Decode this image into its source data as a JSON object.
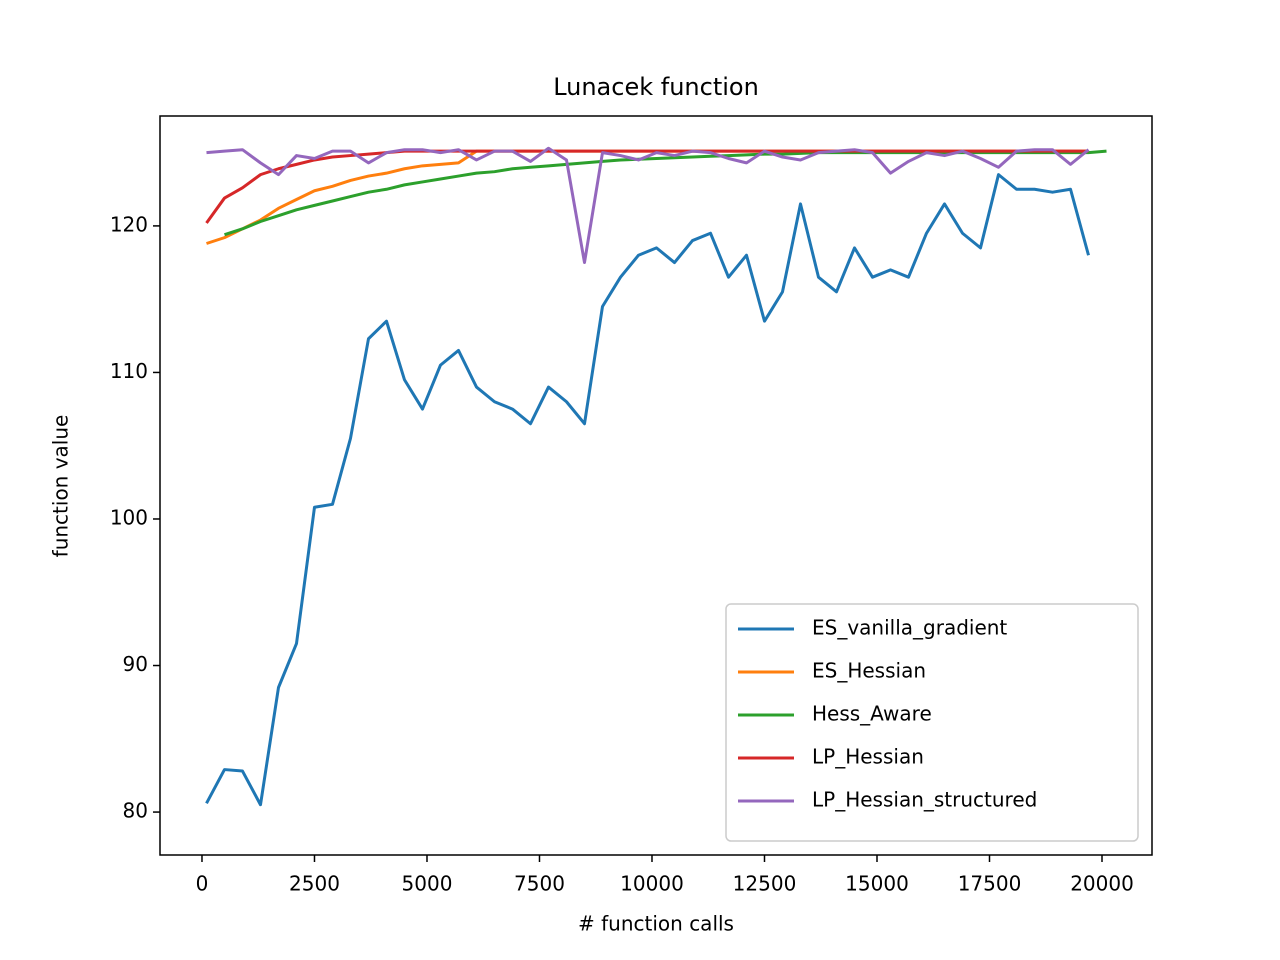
{
  "chart_data": {
    "type": "line",
    "title": "Lunacek function",
    "xlabel": "# function calls",
    "ylabel": "function value",
    "x": [
      100,
      500,
      900,
      1300,
      1700,
      2100,
      2500,
      2900,
      3300,
      3700,
      4100,
      4500,
      4900,
      5300,
      5700,
      6100,
      6500,
      6900,
      7300,
      7700,
      8100,
      8500,
      8900,
      9300,
      9700,
      10100,
      10500,
      10900,
      11300,
      11700,
      12100,
      12500,
      12900,
      13300,
      13700,
      14100,
      14500,
      14900,
      15300,
      15700,
      16100,
      16500,
      16900,
      17300,
      17700,
      18100,
      18500,
      18900,
      19300,
      19700,
      20100
    ],
    "series": [
      {
        "name": "ES_vanilla_gradient",
        "color": "#1f77b4",
        "values": [
          80.6,
          82.9,
          82.8,
          80.5,
          88.5,
          91.5,
          100.8,
          101,
          105.5,
          112.3,
          113.5,
          109.5,
          107.5,
          110.5,
          111.5,
          109,
          108,
          107.5,
          106.5,
          109,
          108,
          106.5,
          114.5,
          116.5,
          118,
          118.5,
          117.5,
          119,
          119.5,
          116.5,
          118,
          113.5,
          115.5,
          121.5,
          116.5,
          115.5,
          118.5,
          116.5,
          117,
          116.5,
          119.5,
          121.5,
          119.5,
          118.5,
          123.5,
          122.5,
          122.5,
          122.3,
          122.5,
          118,
          null
        ]
      },
      {
        "name": "ES_Hessian",
        "color": "#ff7f0e",
        "values": [
          118.8,
          119.2,
          119.8,
          120.4,
          121.2,
          121.8,
          122.4,
          122.7,
          123.1,
          123.4,
          123.6,
          123.9,
          124.1,
          124.2,
          124.3,
          125.1,
          125.1,
          125.1,
          125.1,
          125.1,
          125.1,
          125.1,
          125.1,
          125.1,
          125.1,
          125.1,
          125.1,
          125.1,
          125.1,
          125.1,
          125.1,
          125.1,
          125.1,
          125.1,
          125.1,
          125.1,
          125.1,
          125.1,
          125.1,
          125.1,
          125.1,
          125.1,
          125.1,
          125.1,
          125.1,
          125.1,
          125.1,
          125.1,
          125.1,
          125.1,
          null
        ]
      },
      {
        "name": "Hess_Aware",
        "color": "#2ca02c",
        "values": [
          null,
          119.4,
          119.8,
          120.3,
          120.7,
          121.1,
          121.4,
          121.7,
          122.0,
          122.3,
          122.5,
          122.8,
          123.0,
          123.2,
          123.4,
          123.6,
          123.7,
          123.9,
          124.0,
          124.1,
          124.2,
          124.3,
          124.4,
          124.5,
          124.55,
          124.6,
          124.65,
          124.7,
          124.75,
          124.8,
          124.85,
          124.9,
          124.9,
          124.95,
          125.0,
          125.0,
          125.0,
          125.0,
          125.0,
          125.0,
          125.0,
          125.0,
          125.0,
          125.0,
          125.0,
          125.0,
          125.0,
          125.0,
          125.0,
          125.0,
          125.1
        ]
      },
      {
        "name": "LP_Hessian",
        "color": "#d62728",
        "values": [
          120.2,
          121.9,
          122.6,
          123.5,
          123.9,
          124.2,
          124.5,
          124.7,
          124.8,
          124.9,
          125.0,
          125.1,
          125.1,
          125.1,
          125.1,
          125.1,
          125.1,
          125.1,
          125.1,
          125.1,
          125.1,
          125.1,
          125.1,
          125.1,
          125.1,
          125.1,
          125.1,
          125.1,
          125.1,
          125.1,
          125.1,
          125.1,
          125.1,
          125.1,
          125.1,
          125.1,
          125.1,
          125.1,
          125.1,
          125.1,
          125.1,
          125.1,
          125.1,
          125.1,
          125.1,
          125.1,
          125.1,
          125.1,
          125.1,
          125.1,
          null
        ]
      },
      {
        "name": "LP_Hessian_structured",
        "color": "#9467bd",
        "values": [
          125,
          125.1,
          125.2,
          124.3,
          123.5,
          124.8,
          124.6,
          125.1,
          125.1,
          124.3,
          125,
          125.2,
          125.2,
          125,
          125.2,
          124.5,
          125.1,
          125.1,
          124.4,
          125.3,
          124.5,
          117.5,
          125,
          124.8,
          124.5,
          125,
          124.8,
          125.1,
          125,
          124.6,
          124.3,
          125.1,
          124.7,
          124.5,
          125,
          125.1,
          125.2,
          125,
          123.6,
          124.4,
          125,
          124.8,
          125.1,
          124.6,
          124,
          125.1,
          125.2,
          125.2,
          124.2,
          125.2,
          null
        ]
      }
    ],
    "xlim": [
      -933,
      21111
    ],
    "ylim": [
      77.07,
      127.5
    ],
    "xticks": [
      0,
      2500,
      5000,
      7500,
      10000,
      12500,
      15000,
      17500,
      20000
    ],
    "yticks": [
      80,
      90,
      100,
      110,
      120
    ],
    "legend": "lower right"
  }
}
